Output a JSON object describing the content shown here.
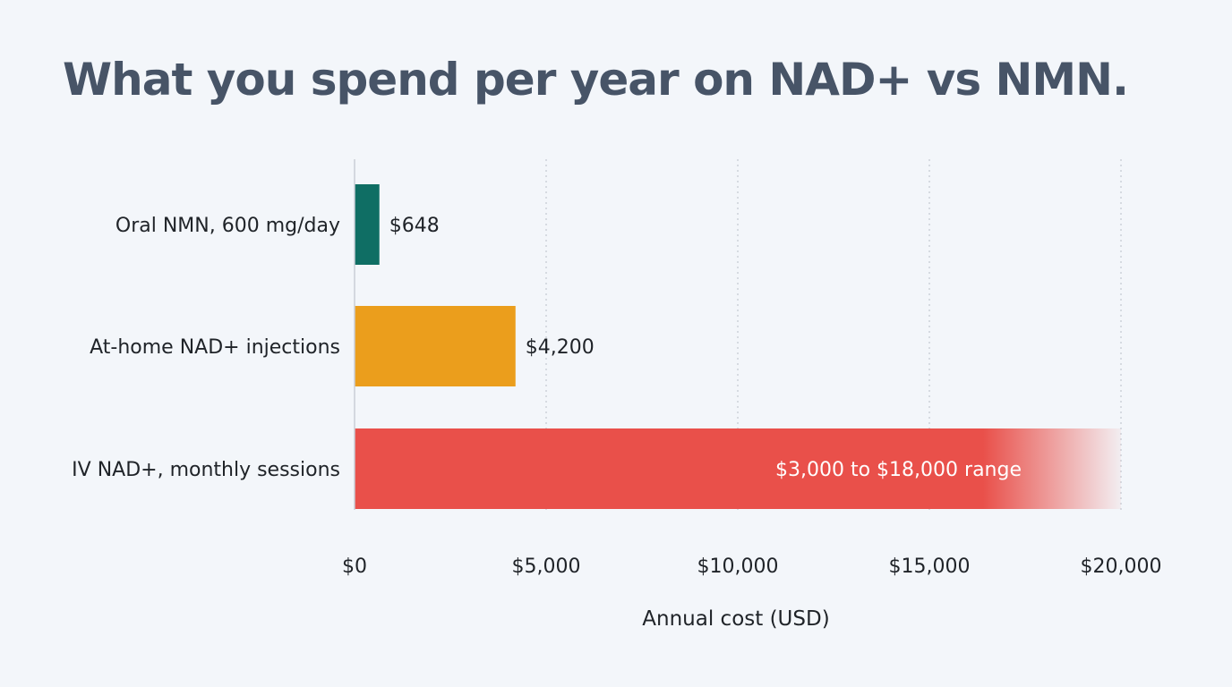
{
  "chart_data": {
    "type": "bar",
    "orientation": "horizontal",
    "title": "What you spend per year on NAD+ vs NMN.",
    "xlabel": "Annual cost (USD)",
    "ylabel": "",
    "xlim": [
      0,
      20000
    ],
    "xticks": [
      0,
      5000,
      10000,
      15000,
      20000
    ],
    "xtick_labels": [
      "$0",
      "$5,000",
      "$10,000",
      "$15,000",
      "$20,000"
    ],
    "grid": "vertical dotted",
    "categories": [
      "Oral NMN, 600 mg/day",
      "At-home NAD+ injections",
      "IV NAD+, monthly sessions"
    ],
    "bars": [
      {
        "category": "Oral NMN, 600 mg/day",
        "value": 648,
        "label": "$648",
        "color": "#0f6e64",
        "label_position": "outside"
      },
      {
        "category": "At-home NAD+ injections",
        "value": 4200,
        "label": "$4,200",
        "color": "#eb9e1c",
        "label_position": "outside"
      },
      {
        "category": "IV NAD+, monthly sessions",
        "value": 20000,
        "range": [
          3000,
          18000
        ],
        "label": "$3,000 to $18,000 range",
        "color": "#e9504a",
        "label_position": "inside",
        "fade_out": true
      }
    ]
  }
}
